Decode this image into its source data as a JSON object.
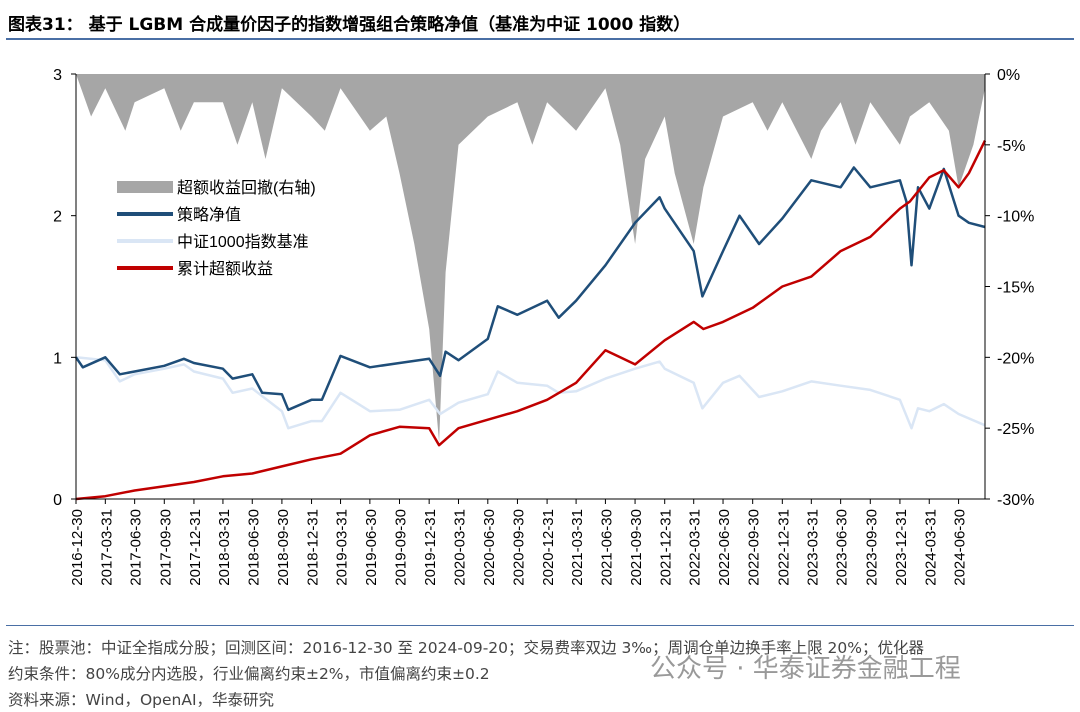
{
  "title": "图表31： 基于 LGBM 合成量价因子的指数增强组合策略净值（基准为中证 1000 指数）",
  "notes": [
    "注：股票池：中证全指成分股；回测区间：2016-12-30 至 2024-09-20；交易费率双边 3‰；周调仓单边换手率上限 20%；优化器",
    "约束条件：80%成分内选股，行业偏离约束±2%，市值偏离约束±0.2",
    "资料来源：Wind，OpenAI，华泰研究"
  ],
  "watermark": "公众号 · 华泰证券金融工程",
  "chart_data": {
    "type": "line",
    "title": "",
    "x_range": [
      "2016-12-30",
      "2024-09-20"
    ],
    "x_ticks": [
      "2016-12-30",
      "2017-03-31",
      "2017-06-30",
      "2017-09-30",
      "2017-12-31",
      "2018-03-31",
      "2018-06-30",
      "2018-09-30",
      "2018-12-31",
      "2019-03-31",
      "2019-06-30",
      "2019-09-30",
      "2019-12-31",
      "2020-03-31",
      "2020-06-30",
      "2020-09-30",
      "2020-12-31",
      "2021-03-31",
      "2021-06-30",
      "2021-09-30",
      "2021-12-31",
      "2022-03-31",
      "2022-06-30",
      "2022-09-30",
      "2022-12-31",
      "2023-03-31",
      "2023-06-30",
      "2023-09-30",
      "2023-12-31",
      "2024-03-31",
      "2024-06-30"
    ],
    "y_left": {
      "range": [
        0,
        3
      ],
      "ticks": [
        "0",
        "1",
        "2",
        "3"
      ]
    },
    "y_right": {
      "range": [
        -30,
        0
      ],
      "ticks": [
        "0%",
        "-5%",
        "-10%",
        "-15%",
        "-20%",
        "-25%",
        "-30%"
      ]
    },
    "grid": false,
    "legend_placement": "upper-left",
    "series": [
      {
        "name": "超额收益回撤(右轴)",
        "type": "area",
        "axis": "right",
        "color": "#a6a6a6",
        "points": [
          [
            "2016-12-30",
            0
          ],
          [
            "2017-02-15",
            -3
          ],
          [
            "2017-03-31",
            -1
          ],
          [
            "2017-06-01",
            -4
          ],
          [
            "2017-06-30",
            -2
          ],
          [
            "2017-09-30",
            -1
          ],
          [
            "2017-11-20",
            -4
          ],
          [
            "2017-12-31",
            -2
          ],
          [
            "2018-03-31",
            -2
          ],
          [
            "2018-05-15",
            -5
          ],
          [
            "2018-06-30",
            -2
          ],
          [
            "2018-08-10",
            -6
          ],
          [
            "2018-09-30",
            -1
          ],
          [
            "2018-12-31",
            -3
          ],
          [
            "2019-02-10",
            -4
          ],
          [
            "2019-03-31",
            -1
          ],
          [
            "2019-06-30",
            -4
          ],
          [
            "2019-08-20",
            -3
          ],
          [
            "2019-09-30",
            -7
          ],
          [
            "2019-11-15",
            -12
          ],
          [
            "2019-12-31",
            -18
          ],
          [
            "2020-01-31",
            -26
          ],
          [
            "2020-02-20",
            -14
          ],
          [
            "2020-03-31",
            -5
          ],
          [
            "2020-06-30",
            -3
          ],
          [
            "2020-09-30",
            -2
          ],
          [
            "2020-11-15",
            -5
          ],
          [
            "2020-12-31",
            -2
          ],
          [
            "2021-03-31",
            -4
          ],
          [
            "2021-06-30",
            -1
          ],
          [
            "2021-08-15",
            -5
          ],
          [
            "2021-09-30",
            -12
          ],
          [
            "2021-10-31",
            -6
          ],
          [
            "2021-12-31",
            -3
          ],
          [
            "2022-01-31",
            -7
          ],
          [
            "2022-03-31",
            -12
          ],
          [
            "2022-04-30",
            -8
          ],
          [
            "2022-06-30",
            -3
          ],
          [
            "2022-09-30",
            -2
          ],
          [
            "2022-11-15",
            -4
          ],
          [
            "2022-12-31",
            -2
          ],
          [
            "2023-03-31",
            -6
          ],
          [
            "2023-04-30",
            -4
          ],
          [
            "2023-06-30",
            -2
          ],
          [
            "2023-08-15",
            -5
          ],
          [
            "2023-09-30",
            -2
          ],
          [
            "2023-12-31",
            -5
          ],
          [
            "2024-01-31",
            -3
          ],
          [
            "2024-03-31",
            -2
          ],
          [
            "2024-05-31",
            -4
          ],
          [
            "2024-06-30",
            -8
          ],
          [
            "2024-08-15",
            -5
          ],
          [
            "2024-09-20",
            -1
          ]
        ]
      },
      {
        "name": "策略净值",
        "type": "line",
        "axis": "left",
        "color": "#1f4e79",
        "points": [
          [
            "2016-12-30",
            1.0
          ],
          [
            "2017-01-20",
            0.93
          ],
          [
            "2017-03-31",
            1.0
          ],
          [
            "2017-05-15",
            0.88
          ],
          [
            "2017-06-30",
            0.9
          ],
          [
            "2017-09-30",
            0.94
          ],
          [
            "2017-11-30",
            0.99
          ],
          [
            "2017-12-31",
            0.96
          ],
          [
            "2018-03-31",
            0.92
          ],
          [
            "2018-04-30",
            0.85
          ],
          [
            "2018-06-30",
            0.88
          ],
          [
            "2018-07-31",
            0.75
          ],
          [
            "2018-09-30",
            0.74
          ],
          [
            "2018-10-20",
            0.63
          ],
          [
            "2018-12-31",
            0.7
          ],
          [
            "2019-02-01",
            0.7
          ],
          [
            "2019-03-31",
            1.01
          ],
          [
            "2019-06-30",
            0.93
          ],
          [
            "2019-09-30",
            0.96
          ],
          [
            "2019-12-31",
            0.99
          ],
          [
            "2020-02-03",
            0.87
          ],
          [
            "2020-02-20",
            1.04
          ],
          [
            "2020-03-31",
            0.98
          ],
          [
            "2020-06-30",
            1.13
          ],
          [
            "2020-07-31",
            1.36
          ],
          [
            "2020-09-30",
            1.3
          ],
          [
            "2020-12-31",
            1.4
          ],
          [
            "2021-02-05",
            1.28
          ],
          [
            "2021-03-31",
            1.4
          ],
          [
            "2021-06-30",
            1.65
          ],
          [
            "2021-09-30",
            1.95
          ],
          [
            "2021-12-15",
            2.13
          ],
          [
            "2021-12-31",
            2.05
          ],
          [
            "2022-03-31",
            1.75
          ],
          [
            "2022-04-27",
            1.43
          ],
          [
            "2022-06-30",
            1.75
          ],
          [
            "2022-08-20",
            2.0
          ],
          [
            "2022-10-20",
            1.8
          ],
          [
            "2022-12-31",
            1.98
          ],
          [
            "2023-03-31",
            2.25
          ],
          [
            "2023-06-30",
            2.2
          ],
          [
            "2023-08-10",
            2.34
          ],
          [
            "2023-09-30",
            2.2
          ],
          [
            "2023-12-31",
            2.25
          ],
          [
            "2024-01-20",
            2.1
          ],
          [
            "2024-02-05",
            1.65
          ],
          [
            "2024-02-25",
            2.2
          ],
          [
            "2024-03-31",
            2.05
          ],
          [
            "2024-05-15",
            2.33
          ],
          [
            "2024-06-30",
            2.0
          ],
          [
            "2024-08-01",
            1.95
          ],
          [
            "2024-09-20",
            1.92
          ]
        ]
      },
      {
        "name": "中证1000指数基准",
        "type": "line",
        "axis": "left",
        "color": "#dae6f5",
        "points": [
          [
            "2016-12-30",
            1.0
          ],
          [
            "2017-03-31",
            0.98
          ],
          [
            "2017-05-15",
            0.83
          ],
          [
            "2017-06-30",
            0.88
          ],
          [
            "2017-09-30",
            0.92
          ],
          [
            "2017-11-30",
            0.95
          ],
          [
            "2017-12-31",
            0.9
          ],
          [
            "2018-03-31",
            0.85
          ],
          [
            "2018-04-30",
            0.75
          ],
          [
            "2018-06-30",
            0.78
          ],
          [
            "2018-09-30",
            0.62
          ],
          [
            "2018-10-20",
            0.5
          ],
          [
            "2018-12-31",
            0.55
          ],
          [
            "2019-02-01",
            0.55
          ],
          [
            "2019-03-31",
            0.75
          ],
          [
            "2019-06-30",
            0.62
          ],
          [
            "2019-09-30",
            0.63
          ],
          [
            "2019-12-31",
            0.7
          ],
          [
            "2020-02-03",
            0.6
          ],
          [
            "2020-03-31",
            0.68
          ],
          [
            "2020-06-30",
            0.74
          ],
          [
            "2020-07-31",
            0.9
          ],
          [
            "2020-09-30",
            0.82
          ],
          [
            "2020-12-31",
            0.8
          ],
          [
            "2021-02-05",
            0.75
          ],
          [
            "2021-03-31",
            0.76
          ],
          [
            "2021-06-30",
            0.85
          ],
          [
            "2021-09-30",
            0.92
          ],
          [
            "2021-12-15",
            0.97
          ],
          [
            "2021-12-31",
            0.92
          ],
          [
            "2022-03-31",
            0.82
          ],
          [
            "2022-04-27",
            0.64
          ],
          [
            "2022-06-30",
            0.82
          ],
          [
            "2022-08-20",
            0.87
          ],
          [
            "2022-10-20",
            0.72
          ],
          [
            "2022-12-31",
            0.76
          ],
          [
            "2023-03-31",
            0.83
          ],
          [
            "2023-06-30",
            0.8
          ],
          [
            "2023-09-30",
            0.77
          ],
          [
            "2023-12-31",
            0.7
          ],
          [
            "2024-02-05",
            0.5
          ],
          [
            "2024-02-25",
            0.64
          ],
          [
            "2024-03-31",
            0.62
          ],
          [
            "2024-05-15",
            0.67
          ],
          [
            "2024-06-30",
            0.6
          ],
          [
            "2024-09-20",
            0.52
          ]
        ]
      },
      {
        "name": "累计超额收益",
        "type": "line",
        "axis": "left",
        "color": "#c00000",
        "points": [
          [
            "2016-12-30",
            0.0
          ],
          [
            "2017-03-31",
            0.02
          ],
          [
            "2017-06-30",
            0.06
          ],
          [
            "2017-09-30",
            0.09
          ],
          [
            "2017-12-31",
            0.12
          ],
          [
            "2018-03-31",
            0.16
          ],
          [
            "2018-06-30",
            0.18
          ],
          [
            "2018-09-30",
            0.23
          ],
          [
            "2018-12-31",
            0.28
          ],
          [
            "2019-03-31",
            0.32
          ],
          [
            "2019-06-30",
            0.45
          ],
          [
            "2019-09-30",
            0.51
          ],
          [
            "2019-12-31",
            0.5
          ],
          [
            "2020-01-31",
            0.38
          ],
          [
            "2020-03-31",
            0.5
          ],
          [
            "2020-06-30",
            0.56
          ],
          [
            "2020-09-30",
            0.62
          ],
          [
            "2020-12-31",
            0.7
          ],
          [
            "2021-03-31",
            0.82
          ],
          [
            "2021-06-30",
            1.05
          ],
          [
            "2021-08-15",
            1.0
          ],
          [
            "2021-09-30",
            0.95
          ],
          [
            "2021-12-31",
            1.12
          ],
          [
            "2022-03-31",
            1.25
          ],
          [
            "2022-04-30",
            1.2
          ],
          [
            "2022-06-30",
            1.25
          ],
          [
            "2022-09-30",
            1.35
          ],
          [
            "2022-12-31",
            1.5
          ],
          [
            "2023-03-31",
            1.57
          ],
          [
            "2023-06-30",
            1.75
          ],
          [
            "2023-09-30",
            1.85
          ],
          [
            "2023-12-31",
            2.05
          ],
          [
            "2024-01-31",
            2.1
          ],
          [
            "2024-03-31",
            2.27
          ],
          [
            "2024-05-15",
            2.32
          ],
          [
            "2024-06-30",
            2.2
          ],
          [
            "2024-08-01",
            2.3
          ],
          [
            "2024-09-20",
            2.53
          ]
        ]
      }
    ]
  }
}
